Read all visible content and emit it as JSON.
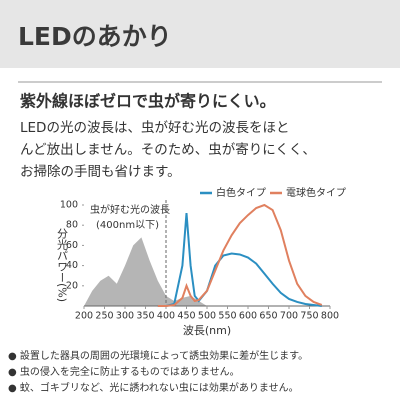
{
  "header": {
    "title": "LEDのあかり"
  },
  "heading": "紫外線ほぼゼロで虫が寄りにくい。",
  "body": [
    "LEDの光の波長は、虫が好む光の波長をほと",
    "んど放出しません。そのため、虫が寄りにくく、",
    "お掃除の手間も省けます。"
  ],
  "chart_data": {
    "type": "line",
    "ylabel": "分光パワー(%)",
    "xlabel": "波長(nm)",
    "xlim": [
      200,
      800
    ],
    "xticks": [
      200,
      250,
      300,
      350,
      400,
      450,
      500,
      550,
      600,
      650,
      700,
      750,
      800
    ],
    "ylim": [
      0,
      108
    ],
    "yticks": [
      20,
      40,
      60,
      80,
      100
    ],
    "threshold": 400,
    "annotation": "(400nm以下)",
    "area": {
      "name": "虫が好む光の波長",
      "color": "#b5b5b5",
      "x": [
        200,
        220,
        240,
        260,
        280,
        300,
        320,
        340,
        360,
        380,
        400,
        420,
        440,
        460,
        480,
        500
      ],
      "values": [
        0,
        15,
        25,
        30,
        22,
        40,
        60,
        68,
        45,
        25,
        10,
        5,
        8,
        10,
        5,
        0
      ]
    },
    "x": [
      380,
      400,
      420,
      440,
      450,
      460,
      470,
      480,
      500,
      520,
      540,
      560,
      580,
      600,
      620,
      640,
      660,
      680,
      700,
      720,
      740,
      760,
      780
    ],
    "series": [
      {
        "name": "白色タイプ",
        "color": "#2b8fc2",
        "values": [
          0,
          0,
          2,
          40,
          92,
          40,
          10,
          5,
          15,
          40,
          50,
          52,
          51,
          48,
          42,
          32,
          22,
          13,
          7,
          4,
          2,
          1,
          0
        ]
      },
      {
        "name": "電球色タイプ",
        "color": "#e0805f",
        "values": [
          0,
          0,
          1,
          8,
          20,
          10,
          5,
          6,
          15,
          35,
          55,
          70,
          82,
          90,
          97,
          100,
          95,
          75,
          45,
          22,
          10,
          4,
          1
        ]
      }
    ]
  },
  "notes": [
    "● 設置した器具の周囲の光環境によって誘虫効果に差が生じます。",
    "● 虫の侵入を完全に防止するものではありません。",
    "● 蚊、ゴキブリなど、光に誘われない虫には効果がありません。"
  ]
}
